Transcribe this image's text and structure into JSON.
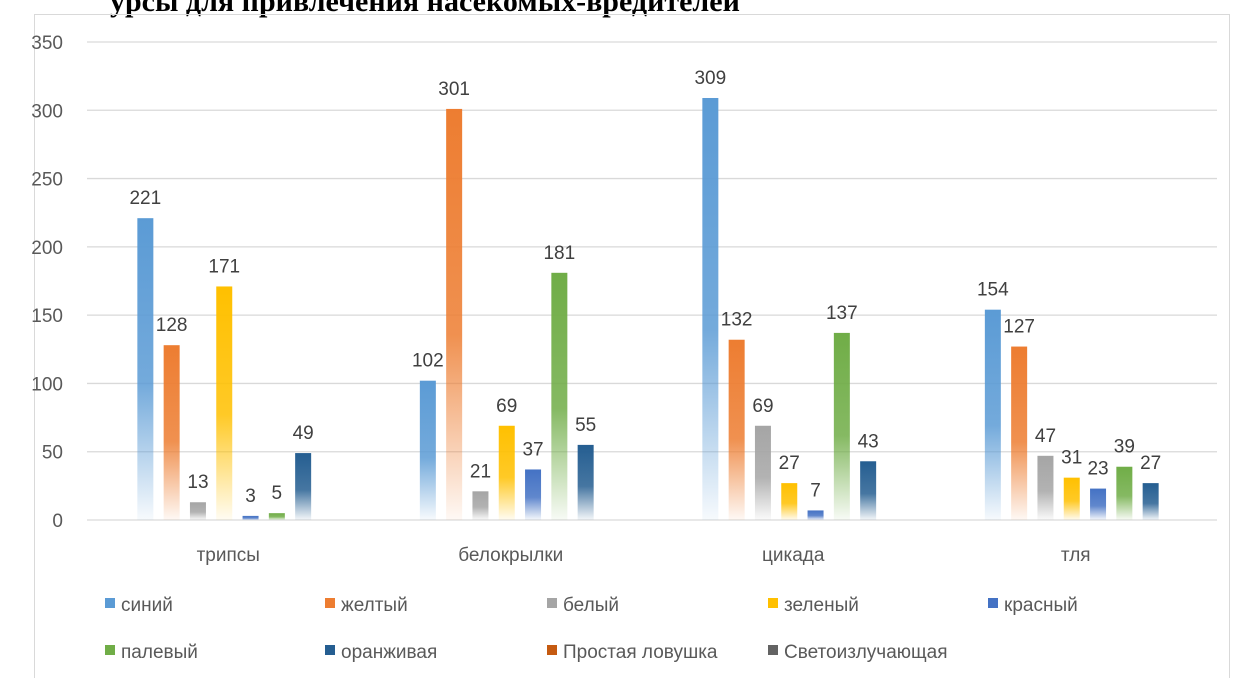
{
  "title": "урсы для привлечения насекомых-вредителей",
  "chart_data": {
    "type": "bar",
    "categories": [
      "трипсы",
      "белокрылки",
      "цикада",
      "тля"
    ],
    "series": [
      {
        "name": "синий",
        "color": "#5b9bd5",
        "values": [
          221,
          102,
          309,
          154
        ]
      },
      {
        "name": "желтый",
        "color": "#ed7d31",
        "values": [
          128,
          301,
          132,
          127
        ]
      },
      {
        "name": "белый",
        "color": "#a5a5a5",
        "values": [
          13,
          21,
          69,
          47
        ]
      },
      {
        "name": "зеленый",
        "color": "#ffc000",
        "values": [
          171,
          69,
          27,
          31
        ]
      },
      {
        "name": "красный",
        "color": "#4472c4",
        "values": [
          3,
          37,
          7,
          23
        ]
      },
      {
        "name": "палевый",
        "color": "#70ad47",
        "values": [
          5,
          181,
          137,
          39
        ]
      },
      {
        "name": "оранживая",
        "color": "#255e91",
        "values": [
          49,
          55,
          43,
          27
        ]
      },
      {
        "name": "Простая ловушка",
        "color": "#c55a11",
        "values": [
          null,
          null,
          null,
          null
        ]
      },
      {
        "name": "Светоизлучающая",
        "color": "#636363",
        "values": [
          null,
          null,
          null,
          null
        ]
      }
    ],
    "yticks": [
      "0",
      "50",
      "100",
      "150",
      "200",
      "250",
      "300",
      "350"
    ],
    "ylim": [
      0,
      350
    ],
    "grid": true,
    "legend_position": "bottom",
    "gradient_fill": true
  }
}
